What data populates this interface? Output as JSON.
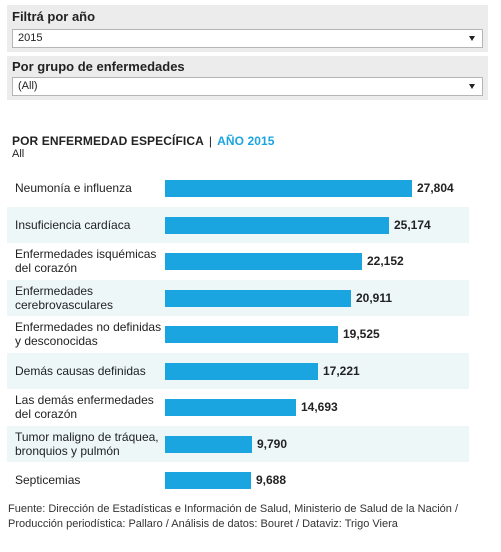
{
  "filters": {
    "year": {
      "label": "Filtrá por año",
      "value": "2015"
    },
    "group": {
      "label": "Por grupo de enfermedades",
      "value": "(All)"
    }
  },
  "chart_header": {
    "title": "POR ENFERMEDAD ESPECÍFICA",
    "separator": "|",
    "year_title": "AÑO 2015",
    "subtitle": "All"
  },
  "colors": {
    "bar": "#1ba5e0",
    "accent_text": "#1ba5e0",
    "row_alt": "#edf7f8"
  },
  "chart_data": {
    "type": "bar",
    "orientation": "horizontal",
    "categories": [
      "Neumonía e influenza",
      "Insuficiencia cardíaca",
      "Enfermedades isquémicas del corazón",
      "Enfermedades cerebrovasculares",
      "Enfermedades no definidas y desconocidas",
      "Demás causas definidas",
      "Las demás enfermedades del corazón",
      "Tumor maligno de tráquea, bronquios y pulmón",
      "Septicemias"
    ],
    "label_lines": [
      [
        "Neumonía e influenza"
      ],
      [
        "Insuficiencia cardíaca"
      ],
      [
        "Enfermedades isquémicas",
        "del corazón"
      ],
      [
        "Enfermedades",
        "cerebrovasculares"
      ],
      [
        "Enfermedades no definidas",
        "y desconocidas"
      ],
      [
        "Demás causas definidas"
      ],
      [
        "Las demás enfermedades",
        "del corazón"
      ],
      [
        "Tumor maligno de tráquea,",
        "bronquios y pulmón"
      ],
      [
        "Septicemias"
      ]
    ],
    "values": [
      27804,
      25174,
      22152,
      20911,
      19525,
      17221,
      14693,
      9790,
      9688
    ],
    "value_labels": [
      "27,804",
      "25,174",
      "22,152",
      "20,911",
      "19,525",
      "17,221",
      "14,693",
      "9,790",
      "9,688"
    ],
    "xlim": [
      0,
      27804
    ]
  },
  "source": {
    "line1": "Fuente: Dirección de Estadísticas e Información de Salud, Ministerio de Salud de la Nación /",
    "line2": "Producción periodística: Pallaro / Análisis de datos: Bouret / Dataviz: Trigo Viera"
  }
}
